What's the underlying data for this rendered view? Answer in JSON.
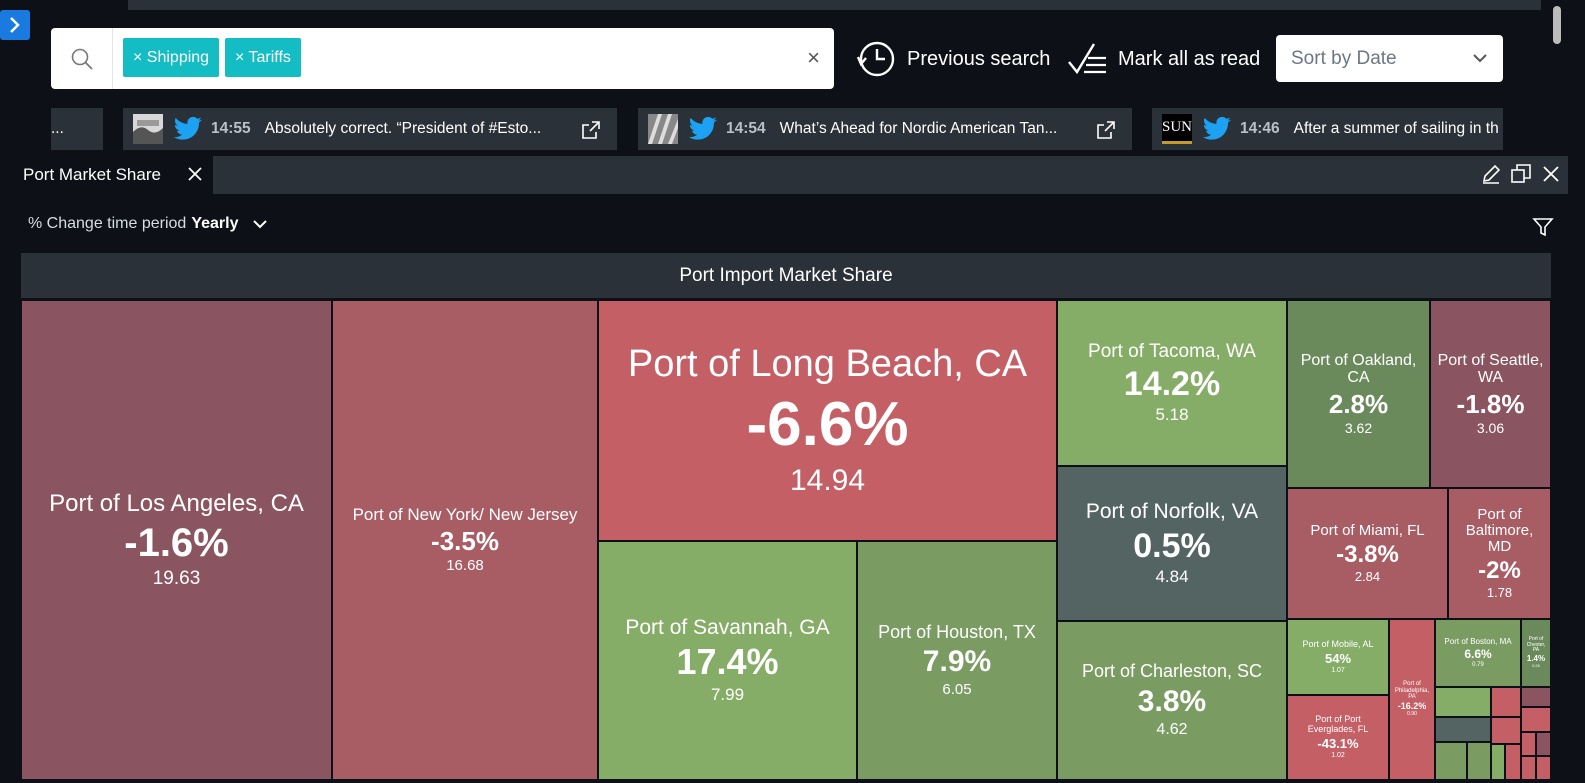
{
  "search": {
    "chips": [
      {
        "label": "× Shipping"
      },
      {
        "label": "× Tariffs"
      }
    ],
    "clear_label": "×"
  },
  "actions": {
    "previous_search": "Previous search",
    "mark_all_read": "Mark all as read"
  },
  "sort": {
    "selected": "Sort by Date"
  },
  "news": [
    {
      "prefix": "..."
    },
    {
      "time": "14:55",
      "title": "Absolutely correct. “President of #Esto..."
    },
    {
      "time": "14:54",
      "title": "What’s Ahead for Nordic American Tan..."
    },
    {
      "time": "14:46",
      "title": "After a summer of sailing in th",
      "source": "SUN"
    }
  ],
  "panel": {
    "tab_title": "Port Market Share",
    "period_label": "% Change time period",
    "period_value": "Yearly"
  },
  "colors": {
    "strong_red": "#c45f66",
    "mid_red": "#a85c64",
    "dark_red": "#8a5560",
    "light_green": "#86ad67",
    "mid_green": "#7a9c63",
    "dark_green": "#6b8a5c",
    "slate": "#546462"
  },
  "chart_data": {
    "type": "treemap",
    "title": "Port Import Market Share",
    "size_metric": "market share",
    "color_metric": "% change yearly",
    "items": [
      {
        "name": "Port of Los Angeles, CA",
        "change": "-1.6%",
        "value": "19.63"
      },
      {
        "name": "Port of New York/ New Jersey",
        "change": "-3.5%",
        "value": "16.68"
      },
      {
        "name": "Port of Long Beach, CA",
        "change": "-6.6%",
        "value": "14.94"
      },
      {
        "name": "Port of Savannah, GA",
        "change": "17.4%",
        "value": "7.99"
      },
      {
        "name": "Port of Houston, TX",
        "change": "7.9%",
        "value": "6.05"
      },
      {
        "name": "Port of Tacoma, WA",
        "change": "14.2%",
        "value": "5.18"
      },
      {
        "name": "Port of Norfolk, VA",
        "change": "0.5%",
        "value": "4.84"
      },
      {
        "name": "Port of Charleston, SC",
        "change": "3.8%",
        "value": "4.62"
      },
      {
        "name": "Port of Oakland, CA",
        "change": "2.8%",
        "value": "3.62"
      },
      {
        "name": "Port of Seattle, WA",
        "change": "-1.8%",
        "value": "3.06"
      },
      {
        "name": "Port of Miami, FL",
        "change": "-3.8%",
        "value": "2.84"
      },
      {
        "name": "Port of Baltimore, MD",
        "change": "-2%",
        "value": "1.78"
      },
      {
        "name": "Port of Mobile, AL",
        "change": "54%",
        "value": "1.07"
      },
      {
        "name": "Port of Port Everglades, FL",
        "change": "-43.1%",
        "value": "1.02"
      },
      {
        "name": "Port of Philadelphia, PA",
        "change": "-16.2%",
        "value": "0.90"
      },
      {
        "name": "Port of Boston, MA",
        "change": "6.6%",
        "value": "0.79"
      },
      {
        "name": "Port of Chester, PA",
        "change": "1.4%",
        "value": "0.26"
      }
    ]
  }
}
